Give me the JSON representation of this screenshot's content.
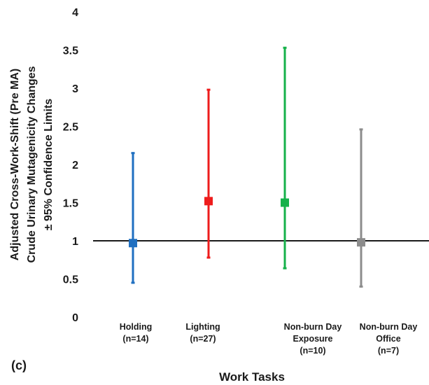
{
  "chart_data": {
    "type": "scatter",
    "panel_label": "(c)",
    "xlabel": "Work Tasks",
    "ylabel_lines": [
      "Adjusted Cross-Work-Shift (Pre MA)",
      "Crude Urinary Mutagenicity Changes",
      "± 95% Confidence Limits"
    ],
    "ylim": [
      0,
      4
    ],
    "yticks": [
      "0",
      "0.5",
      "1",
      "1.5",
      "2",
      "2.5",
      "3",
      "3.5",
      "4"
    ],
    "reference_line": 1,
    "grid": false,
    "categories": [
      {
        "lines": [
          "Holding",
          "(n=14)"
        ],
        "estimate": 0.97,
        "lower": 0.45,
        "upper": 2.15,
        "color": "#1f6fc0"
      },
      {
        "lines": [
          "Lighting",
          "(n=27)"
        ],
        "estimate": 1.52,
        "lower": 0.78,
        "upper": 2.98,
        "color": "#ee1c1c"
      },
      {
        "lines": [
          "Non-burn Day",
          "Exposure",
          "(n=10)"
        ],
        "estimate": 1.5,
        "lower": 0.64,
        "upper": 3.53,
        "color": "#16b14a"
      },
      {
        "lines": [
          "Non-burn Day",
          "Office",
          "(n=7)"
        ],
        "estimate": 0.98,
        "lower": 0.4,
        "upper": 2.46,
        "color": "#8c8c8c"
      }
    ]
  }
}
